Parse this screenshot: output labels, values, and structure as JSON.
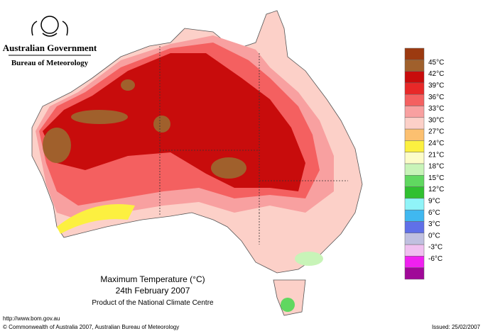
{
  "header": {
    "government": "Australian Government",
    "bureau": "Bureau of Meteorology"
  },
  "map": {
    "title": "Maximum Temperature (°C)",
    "date": "24th February 2007",
    "product": "Product of the National Climate Centre"
  },
  "legend": {
    "above_color": "#9c3a10",
    "items": [
      {
        "label": "45°C",
        "color": "#a0602c"
      },
      {
        "label": "42°C",
        "color": "#c80c0c"
      },
      {
        "label": "39°C",
        "color": "#e82828"
      },
      {
        "label": "36°C",
        "color": "#f46060"
      },
      {
        "label": "33°C",
        "color": "#f8a0a0"
      },
      {
        "label": "30°C",
        "color": "#fcd0c8"
      },
      {
        "label": "27°C",
        "color": "#fcc070"
      },
      {
        "label": "24°C",
        "color": "#fcf040"
      },
      {
        "label": "21°C",
        "color": "#fcfcc8"
      },
      {
        "label": "18°C",
        "color": "#c8f4b8"
      },
      {
        "label": "15°C",
        "color": "#60d860"
      },
      {
        "label": "12°C",
        "color": "#30c030"
      },
      {
        "label": "9°C",
        "color": "#90f4f8"
      },
      {
        "label": "6°C",
        "color": "#40b8f0"
      },
      {
        "label": "3°C",
        "color": "#6070e8"
      },
      {
        "label": "0°C",
        "color": "#c0c0e0"
      },
      {
        "label": "-3°C",
        "color": "#f0c0f0"
      },
      {
        "label": "-6°C",
        "color": "#f020f0"
      }
    ],
    "below_color": "#a00898"
  },
  "footer": {
    "url": "http://www.bom.gov.au",
    "copyright": "© Commonwealth of Australia 2007, Australian Bureau of Meteorology",
    "issued": "Issued: 25/02/2007"
  }
}
